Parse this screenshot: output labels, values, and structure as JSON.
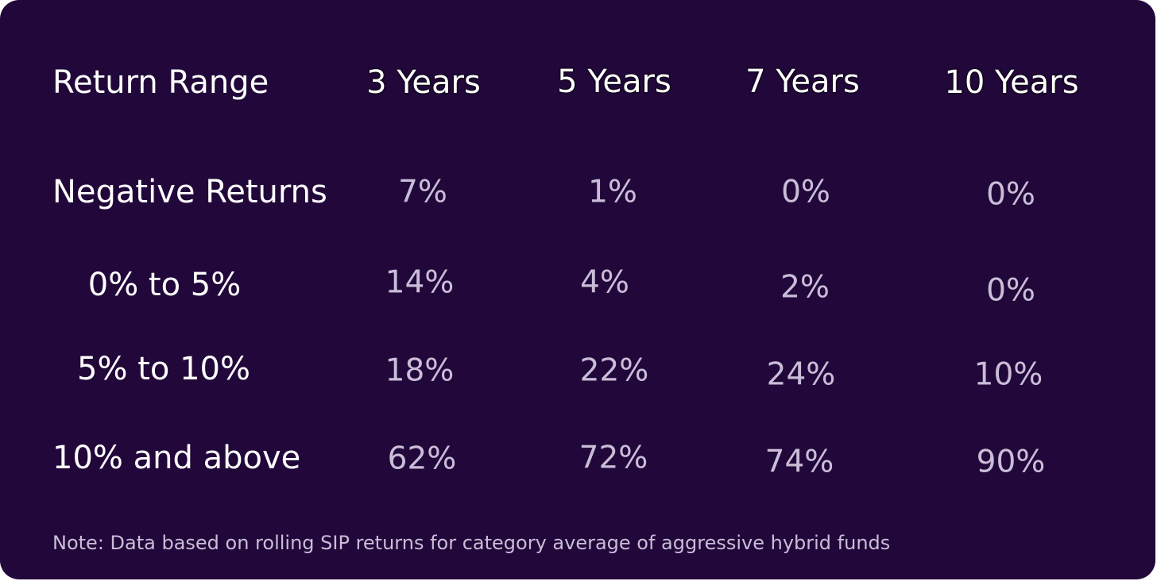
{
  "chart_data": {
    "type": "table",
    "columns": [
      "Return Range",
      "3 Years",
      "5 Years",
      "7 Years",
      "10 Years"
    ],
    "rows": [
      {
        "label": "Negative Returns",
        "values": [
          "7%",
          "1%",
          "0%",
          "0%"
        ]
      },
      {
        "label": "0% to 5%",
        "values": [
          "14%",
          "4%",
          "2%",
          "0%"
        ]
      },
      {
        "label": "5% to 10%",
        "values": [
          "18%",
          "22%",
          "24%",
          "10%"
        ]
      },
      {
        "label": "10% and above",
        "values": [
          "62%",
          "72%",
          "74%",
          "90%"
        ]
      }
    ],
    "note": "Note: Data based on rolling SIP returns for category average of aggressive hybrid funds"
  },
  "colors": {
    "background": "#22083a",
    "header_text": "#ffffff",
    "value_text": "#c9bdd8"
  }
}
